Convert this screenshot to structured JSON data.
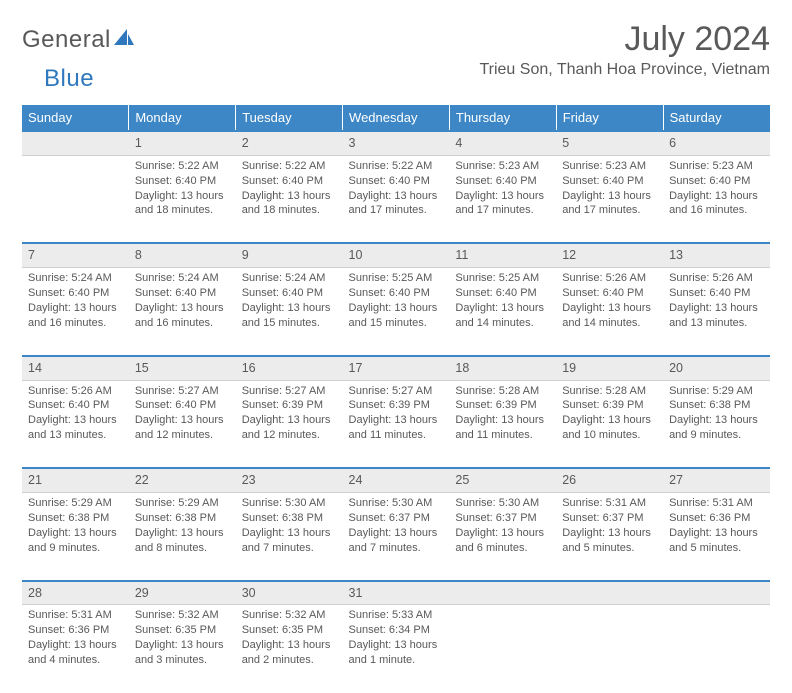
{
  "brand": {
    "part1": "General",
    "part2": "Blue"
  },
  "title": "July 2024",
  "location": "Trieu Son, Thanh Hoa Province, Vietnam",
  "colors": {
    "header_bg": "#3d87c7",
    "header_text": "#ffffff",
    "daynum_bg": "#ececec",
    "row_border": "#3d87c7",
    "text": "#595959",
    "brand_blue": "#2f78bd"
  },
  "fonts": {
    "title_size": 34,
    "location_size": 16,
    "dayhead_size": 13,
    "body_size": 11
  },
  "weekdays": [
    "Sunday",
    "Monday",
    "Tuesday",
    "Wednesday",
    "Thursday",
    "Friday",
    "Saturday"
  ],
  "weeks": [
    [
      null,
      {
        "n": 1,
        "sr": "5:22 AM",
        "ss": "6:40 PM",
        "dl": "13 hours and 18 minutes."
      },
      {
        "n": 2,
        "sr": "5:22 AM",
        "ss": "6:40 PM",
        "dl": "13 hours and 18 minutes."
      },
      {
        "n": 3,
        "sr": "5:22 AM",
        "ss": "6:40 PM",
        "dl": "13 hours and 17 minutes."
      },
      {
        "n": 4,
        "sr": "5:23 AM",
        "ss": "6:40 PM",
        "dl": "13 hours and 17 minutes."
      },
      {
        "n": 5,
        "sr": "5:23 AM",
        "ss": "6:40 PM",
        "dl": "13 hours and 17 minutes."
      },
      {
        "n": 6,
        "sr": "5:23 AM",
        "ss": "6:40 PM",
        "dl": "13 hours and 16 minutes."
      }
    ],
    [
      {
        "n": 7,
        "sr": "5:24 AM",
        "ss": "6:40 PM",
        "dl": "13 hours and 16 minutes."
      },
      {
        "n": 8,
        "sr": "5:24 AM",
        "ss": "6:40 PM",
        "dl": "13 hours and 16 minutes."
      },
      {
        "n": 9,
        "sr": "5:24 AM",
        "ss": "6:40 PM",
        "dl": "13 hours and 15 minutes."
      },
      {
        "n": 10,
        "sr": "5:25 AM",
        "ss": "6:40 PM",
        "dl": "13 hours and 15 minutes."
      },
      {
        "n": 11,
        "sr": "5:25 AM",
        "ss": "6:40 PM",
        "dl": "13 hours and 14 minutes."
      },
      {
        "n": 12,
        "sr": "5:26 AM",
        "ss": "6:40 PM",
        "dl": "13 hours and 14 minutes."
      },
      {
        "n": 13,
        "sr": "5:26 AM",
        "ss": "6:40 PM",
        "dl": "13 hours and 13 minutes."
      }
    ],
    [
      {
        "n": 14,
        "sr": "5:26 AM",
        "ss": "6:40 PM",
        "dl": "13 hours and 13 minutes."
      },
      {
        "n": 15,
        "sr": "5:27 AM",
        "ss": "6:40 PM",
        "dl": "13 hours and 12 minutes."
      },
      {
        "n": 16,
        "sr": "5:27 AM",
        "ss": "6:39 PM",
        "dl": "13 hours and 12 minutes."
      },
      {
        "n": 17,
        "sr": "5:27 AM",
        "ss": "6:39 PM",
        "dl": "13 hours and 11 minutes."
      },
      {
        "n": 18,
        "sr": "5:28 AM",
        "ss": "6:39 PM",
        "dl": "13 hours and 11 minutes."
      },
      {
        "n": 19,
        "sr": "5:28 AM",
        "ss": "6:39 PM",
        "dl": "13 hours and 10 minutes."
      },
      {
        "n": 20,
        "sr": "5:29 AM",
        "ss": "6:38 PM",
        "dl": "13 hours and 9 minutes."
      }
    ],
    [
      {
        "n": 21,
        "sr": "5:29 AM",
        "ss": "6:38 PM",
        "dl": "13 hours and 9 minutes."
      },
      {
        "n": 22,
        "sr": "5:29 AM",
        "ss": "6:38 PM",
        "dl": "13 hours and 8 minutes."
      },
      {
        "n": 23,
        "sr": "5:30 AM",
        "ss": "6:38 PM",
        "dl": "13 hours and 7 minutes."
      },
      {
        "n": 24,
        "sr": "5:30 AM",
        "ss": "6:37 PM",
        "dl": "13 hours and 7 minutes."
      },
      {
        "n": 25,
        "sr": "5:30 AM",
        "ss": "6:37 PM",
        "dl": "13 hours and 6 minutes."
      },
      {
        "n": 26,
        "sr": "5:31 AM",
        "ss": "6:37 PM",
        "dl": "13 hours and 5 minutes."
      },
      {
        "n": 27,
        "sr": "5:31 AM",
        "ss": "6:36 PM",
        "dl": "13 hours and 5 minutes."
      }
    ],
    [
      {
        "n": 28,
        "sr": "5:31 AM",
        "ss": "6:36 PM",
        "dl": "13 hours and 4 minutes."
      },
      {
        "n": 29,
        "sr": "5:32 AM",
        "ss": "6:35 PM",
        "dl": "13 hours and 3 minutes."
      },
      {
        "n": 30,
        "sr": "5:32 AM",
        "ss": "6:35 PM",
        "dl": "13 hours and 2 minutes."
      },
      {
        "n": 31,
        "sr": "5:33 AM",
        "ss": "6:34 PM",
        "dl": "13 hours and 1 minute."
      },
      null,
      null,
      null
    ]
  ],
  "labels": {
    "sunrise": "Sunrise:",
    "sunset": "Sunset:",
    "daylight": "Daylight:"
  }
}
